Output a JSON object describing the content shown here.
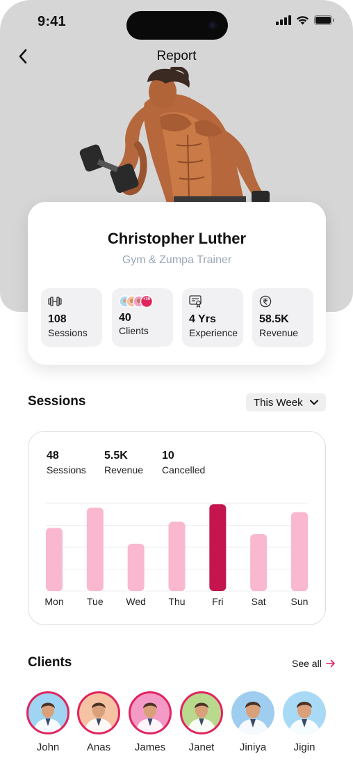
{
  "status": {
    "time": "9:41"
  },
  "nav": {
    "title": "Report"
  },
  "profile": {
    "name": "Christopher Luther",
    "role": "Gym & Zumpa Trainer",
    "stats": [
      {
        "icon": "dumbbell-icon",
        "value": "108",
        "label": "Sessions"
      },
      {
        "icon": "client-avatars-icon",
        "value": "40",
        "label": "Clients",
        "more_badge": "+36"
      },
      {
        "icon": "certificate-icon",
        "value": "4 Yrs",
        "label": "Experience"
      },
      {
        "icon": "rupee-icon",
        "value": "58.5K",
        "label": "Revenue"
      }
    ]
  },
  "sessions": {
    "title": "Sessions",
    "period": "This Week",
    "metrics": [
      {
        "value": "48",
        "label": "Sessions"
      },
      {
        "value": "5.5K",
        "label": "Revenue"
      },
      {
        "value": "10",
        "label": "Cancelled"
      }
    ]
  },
  "chart_data": {
    "type": "bar",
    "categories": [
      "Mon",
      "Tue",
      "Wed",
      "Thu",
      "Fri",
      "Sat",
      "Sun"
    ],
    "values": [
      0.72,
      0.95,
      0.54,
      0.79,
      0.99,
      0.65,
      0.9
    ],
    "highlight_index": 4,
    "colors": {
      "bar": "#f9b8cf",
      "highlight": "#c5154f",
      "grid": "#ececec"
    },
    "ylim": [
      0,
      1
    ],
    "grid": true
  },
  "clients": {
    "title": "Clients",
    "see_all": "See all",
    "items": [
      {
        "name": "John",
        "bg": "#9fd4f2",
        "ring": true
      },
      {
        "name": "Anas",
        "bg": "#f6c2a4",
        "ring": true
      },
      {
        "name": "James",
        "bg": "#f49ac7",
        "ring": true
      },
      {
        "name": "Janet",
        "bg": "#b9d98e",
        "ring": true
      },
      {
        "name": "Jiniya",
        "bg": "#9fcdf0",
        "ring": false
      },
      {
        "name": "Jigin",
        "bg": "#a9daf5",
        "ring": false
      }
    ]
  },
  "colors": {
    "accent": "#e0245e",
    "hero_bg": "#d6d6d6",
    "subtle_text": "#9ba6b8"
  }
}
